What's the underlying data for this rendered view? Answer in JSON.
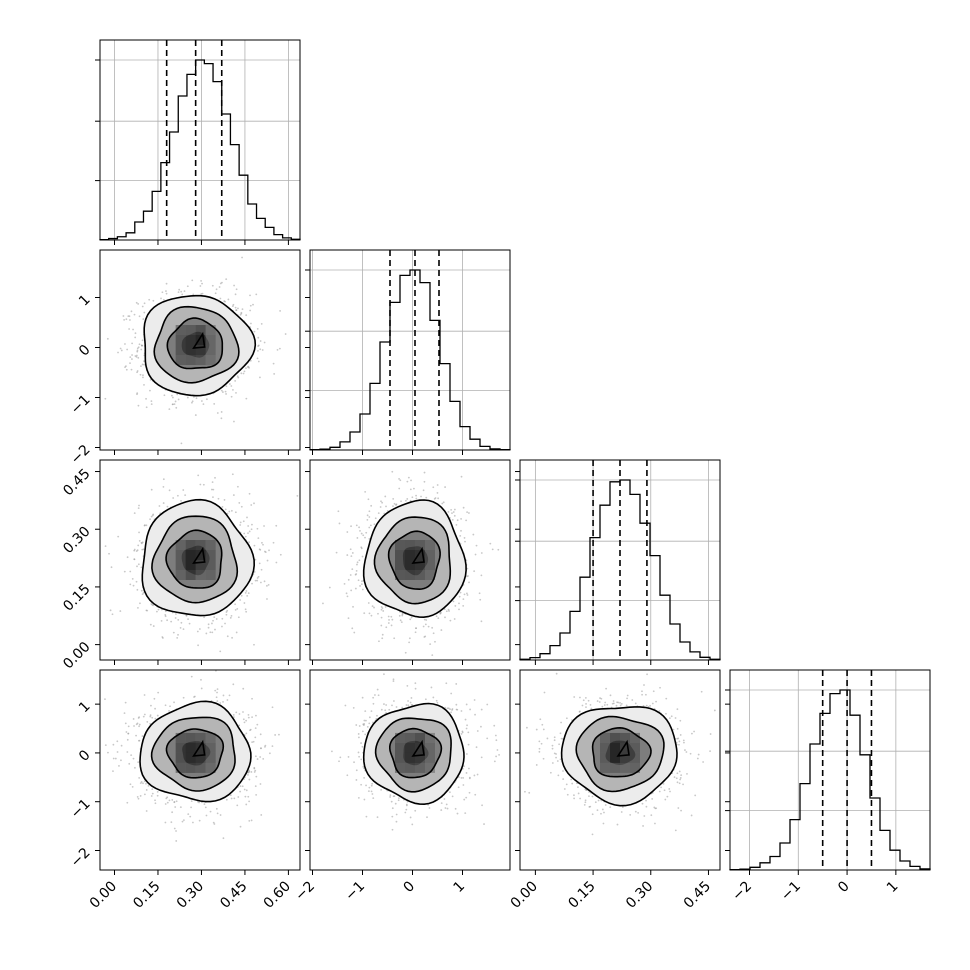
{
  "chart_data": {
    "type": "corner",
    "parameters": [
      {
        "mean": 0.28,
        "std": 0.095,
        "range": [
          -0.05,
          0.64
        ],
        "quantiles": [
          0.18,
          0.28,
          0.37
        ],
        "ticks": [
          0.0,
          0.15,
          0.3,
          0.45,
          0.6
        ],
        "tick_labels": [
          "0.00",
          "0.15",
          "0.30",
          "0.45",
          "0.60"
        ]
      },
      {
        "mean": 0.05,
        "std": 0.5,
        "range": [
          -2.05,
          1.95
        ],
        "quantiles": [
          -0.45,
          0.05,
          0.53
        ],
        "ticks": [
          -2,
          -1,
          0,
          1
        ],
        "tick_labels": [
          "−2",
          "−1",
          "0",
          "1"
        ]
      },
      {
        "mean": 0.22,
        "std": 0.075,
        "range": [
          -0.04,
          0.48
        ],
        "quantiles": [
          0.15,
          0.22,
          0.29
        ],
        "ticks": [
          0.0,
          0.15,
          0.3,
          0.45
        ],
        "tick_labels": [
          "0.00",
          "0.15",
          "0.30",
          "0.45"
        ]
      },
      {
        "mean": 0.0,
        "std": 0.5,
        "range": [
          -2.4,
          1.7
        ],
        "quantiles": [
          -0.5,
          0.0,
          0.5
        ],
        "ticks": [
          -2,
          -1,
          0,
          1
        ],
        "tick_labels": [
          "−2",
          "−1",
          "0",
          "1"
        ]
      }
    ],
    "histograms": [
      [
        0.002,
        0.008,
        0.018,
        0.04,
        0.1,
        0.16,
        0.27,
        0.43,
        0.6,
        0.8,
        0.92,
        1.0,
        0.98,
        0.88,
        0.7,
        0.53,
        0.36,
        0.2,
        0.12,
        0.07,
        0.03,
        0.012,
        0.004
      ],
      [
        0.002,
        0.005,
        0.015,
        0.045,
        0.1,
        0.2,
        0.37,
        0.6,
        0.82,
        0.97,
        1.0,
        0.93,
        0.72,
        0.48,
        0.27,
        0.13,
        0.06,
        0.02,
        0.006,
        0.002
      ],
      [
        0.004,
        0.013,
        0.035,
        0.08,
        0.15,
        0.27,
        0.46,
        0.68,
        0.86,
        0.99,
        1.0,
        0.92,
        0.76,
        0.58,
        0.36,
        0.2,
        0.1,
        0.045,
        0.015,
        0.004
      ],
      [
        0.002,
        0.005,
        0.015,
        0.04,
        0.075,
        0.15,
        0.28,
        0.48,
        0.7,
        0.87,
        0.98,
        1.0,
        0.86,
        0.64,
        0.4,
        0.22,
        0.11,
        0.05,
        0.02,
        0.006
      ]
    ],
    "quantile_levels": [
      0.16,
      0.5,
      0.84
    ],
    "contour_levels_sigma": [
      0.5,
      1.0,
      1.5,
      2.0
    ],
    "xlabel": "",
    "ylabel": "",
    "title": "",
    "grid": true
  }
}
